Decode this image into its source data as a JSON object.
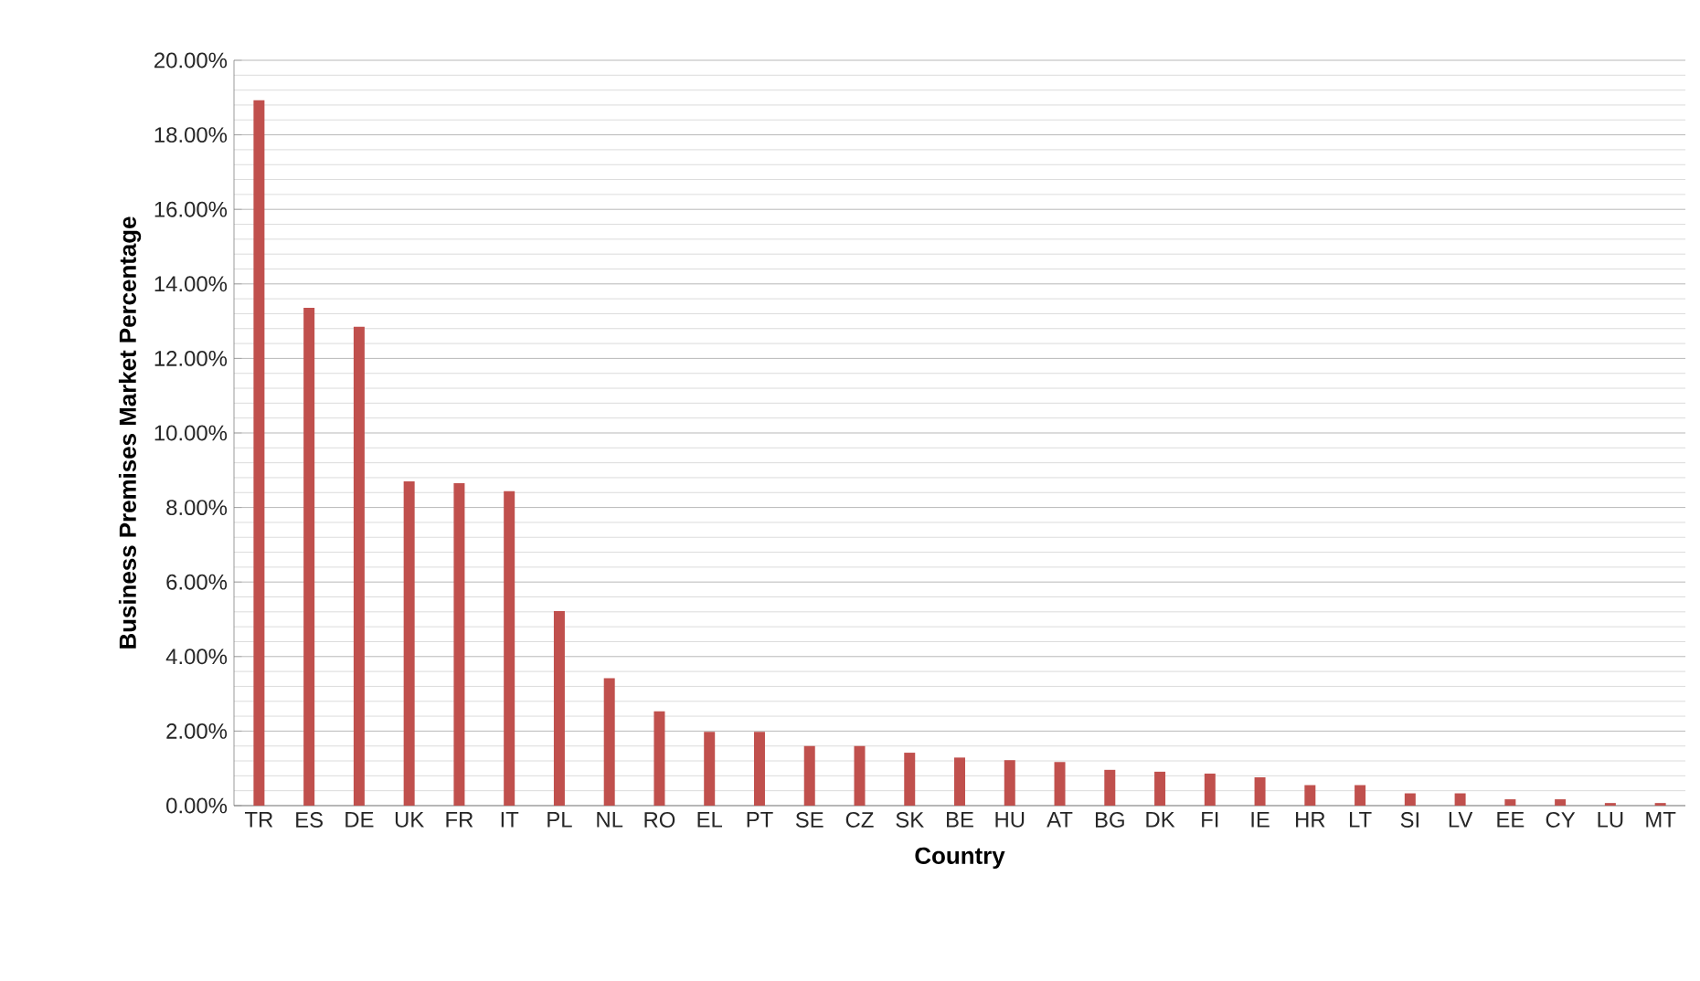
{
  "chart_data": {
    "type": "bar",
    "xlabel": "Country",
    "ylabel": "Business Premises Market Percentage",
    "categories": [
      "TR",
      "ES",
      "DE",
      "UK",
      "FR",
      "IT",
      "PL",
      "NL",
      "RO",
      "EL",
      "PT",
      "SE",
      "CZ",
      "SK",
      "BE",
      "HU",
      "AT",
      "BG",
      "DK",
      "FI",
      "IE",
      "HR",
      "LT",
      "SI",
      "LV",
      "EE",
      "CY",
      "LU",
      "MT"
    ],
    "values": [
      18.93,
      13.36,
      12.85,
      8.7,
      8.65,
      8.44,
      5.22,
      3.42,
      2.53,
      1.98,
      1.98,
      1.6,
      1.6,
      1.42,
      1.29,
      1.22,
      1.17,
      0.96,
      0.91,
      0.86,
      0.76,
      0.55,
      0.55,
      0.33,
      0.33,
      0.17,
      0.17,
      0.07,
      0.07
    ],
    "color": "#c0504d",
    "ylim": [
      0,
      20
    ],
    "yticks": [
      {
        "value": 0,
        "label": "0.00%"
      },
      {
        "value": 2,
        "label": "2.00%"
      },
      {
        "value": 4,
        "label": "4.00%"
      },
      {
        "value": 6,
        "label": "6.00%"
      },
      {
        "value": 8,
        "label": "8.00%"
      },
      {
        "value": 10,
        "label": "10.00%"
      },
      {
        "value": 12,
        "label": "12.00%"
      },
      {
        "value": 14,
        "label": "14.00%"
      },
      {
        "value": 16,
        "label": "16.00%"
      },
      {
        "value": 18,
        "label": "18.00%"
      },
      {
        "value": 20,
        "label": "20.00%"
      }
    ],
    "grid": true
  }
}
